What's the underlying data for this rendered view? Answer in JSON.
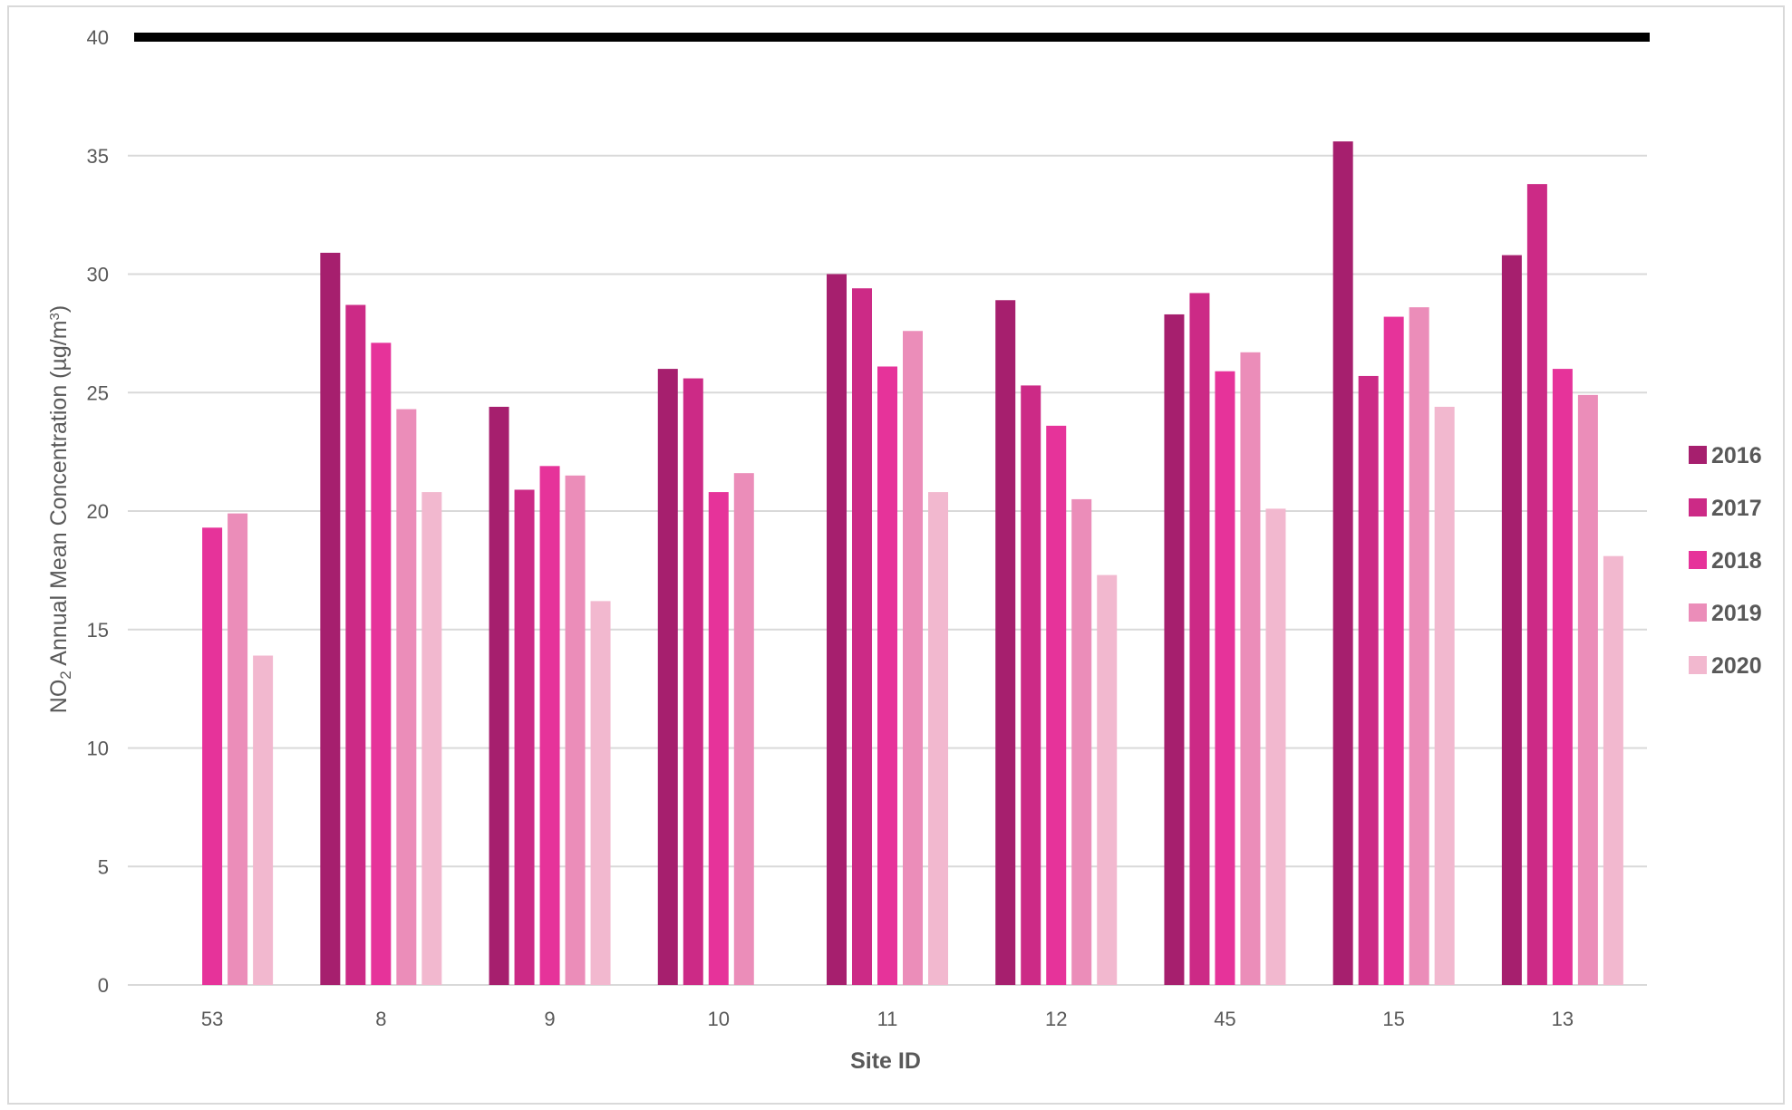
{
  "chart_data": {
    "type": "bar",
    "title": "",
    "xlabel": "Site ID",
    "ylabel": {
      "prefix": "NO",
      "subscript": "2",
      "main": " Annual Mean Concentration (µg/m",
      "superscript": "3",
      "suffix": ")"
    },
    "ylim": [
      0,
      40
    ],
    "yticks": [
      "0",
      "5",
      "10",
      "15",
      "20",
      "25",
      "30",
      "35",
      "40"
    ],
    "grid": true,
    "legend_position": "right",
    "categories": [
      "53",
      "8",
      "9",
      "10",
      "11",
      "12",
      "45",
      "15",
      "13"
    ],
    "series": [
      {
        "name": "2016",
        "color": "#a61f6e",
        "values": [
          null,
          30.9,
          24.4,
          26.0,
          30.0,
          28.9,
          28.3,
          35.6,
          30.8
        ]
      },
      {
        "name": "2017",
        "color": "#cc2a86",
        "values": [
          null,
          28.7,
          20.9,
          25.6,
          29.4,
          25.3,
          29.2,
          25.7,
          33.8
        ]
      },
      {
        "name": "2018",
        "color": "#e6339a",
        "values": [
          19.3,
          27.1,
          21.9,
          20.8,
          26.1,
          23.6,
          25.9,
          28.2,
          26.0
        ]
      },
      {
        "name": "2019",
        "color": "#eb8db9",
        "values": [
          19.9,
          24.3,
          21.5,
          21.6,
          27.6,
          20.5,
          26.7,
          28.6,
          24.9
        ]
      },
      {
        "name": "2020",
        "color": "#f2b8cf",
        "values": [
          13.9,
          20.8,
          16.2,
          null,
          20.8,
          17.3,
          20.1,
          24.4,
          18.1
        ]
      }
    ],
    "reference_line": {
      "value": 40,
      "color": "#000000"
    }
  }
}
